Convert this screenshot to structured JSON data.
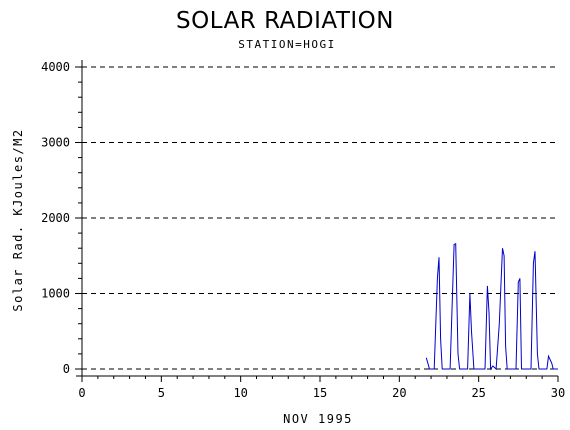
{
  "colors": {
    "series": "#0000cc",
    "axis": "#000000",
    "grid": "#000000",
    "background": "#ffffff"
  },
  "chart_data": {
    "type": "line",
    "title": "SOLAR RADIATION",
    "subtitle": "STATION=HOGI",
    "xlabel": "NOV 1995",
    "ylabel": "Solar Rad. KJoules/M2",
    "xlim": [
      0,
      30
    ],
    "ylim": [
      0,
      4000
    ],
    "x_ticks": [
      "0",
      "5",
      "10",
      "15",
      "20",
      "25",
      "30"
    ],
    "y_ticks": [
      "0",
      "1000",
      "2000",
      "3000",
      "4000"
    ],
    "grid": "horizontal dashed",
    "series": [
      {
        "points": [
          [
            21.7,
            150
          ],
          [
            21.9,
            0
          ],
          [
            22.2,
            0
          ],
          [
            22.4,
            1200
          ],
          [
            22.5,
            1480
          ],
          [
            22.6,
            400
          ],
          [
            22.7,
            0
          ],
          [
            23.2,
            0
          ],
          [
            23.45,
            1650
          ],
          [
            23.55,
            1660
          ],
          [
            23.7,
            200
          ],
          [
            23.8,
            0
          ],
          [
            24.3,
            0
          ],
          [
            24.45,
            1000
          ],
          [
            24.55,
            500
          ],
          [
            24.7,
            0
          ],
          [
            25.4,
            0
          ],
          [
            25.55,
            1100
          ],
          [
            25.65,
            750
          ],
          [
            25.75,
            0
          ],
          [
            25.9,
            40
          ],
          [
            26.1,
            0
          ],
          [
            26.3,
            600
          ],
          [
            26.5,
            1600
          ],
          [
            26.6,
            1500
          ],
          [
            26.7,
            300
          ],
          [
            26.8,
            0
          ],
          [
            27.35,
            0
          ],
          [
            27.5,
            1150
          ],
          [
            27.6,
            1200
          ],
          [
            27.7,
            0
          ],
          [
            28.3,
            0
          ],
          [
            28.45,
            1400
          ],
          [
            28.55,
            1560
          ],
          [
            28.7,
            200
          ],
          [
            28.8,
            0
          ],
          [
            29.3,
            0
          ],
          [
            29.4,
            170
          ],
          [
            29.6,
            80
          ],
          [
            29.7,
            0
          ],
          [
            30,
            0
          ]
        ]
      }
    ]
  }
}
